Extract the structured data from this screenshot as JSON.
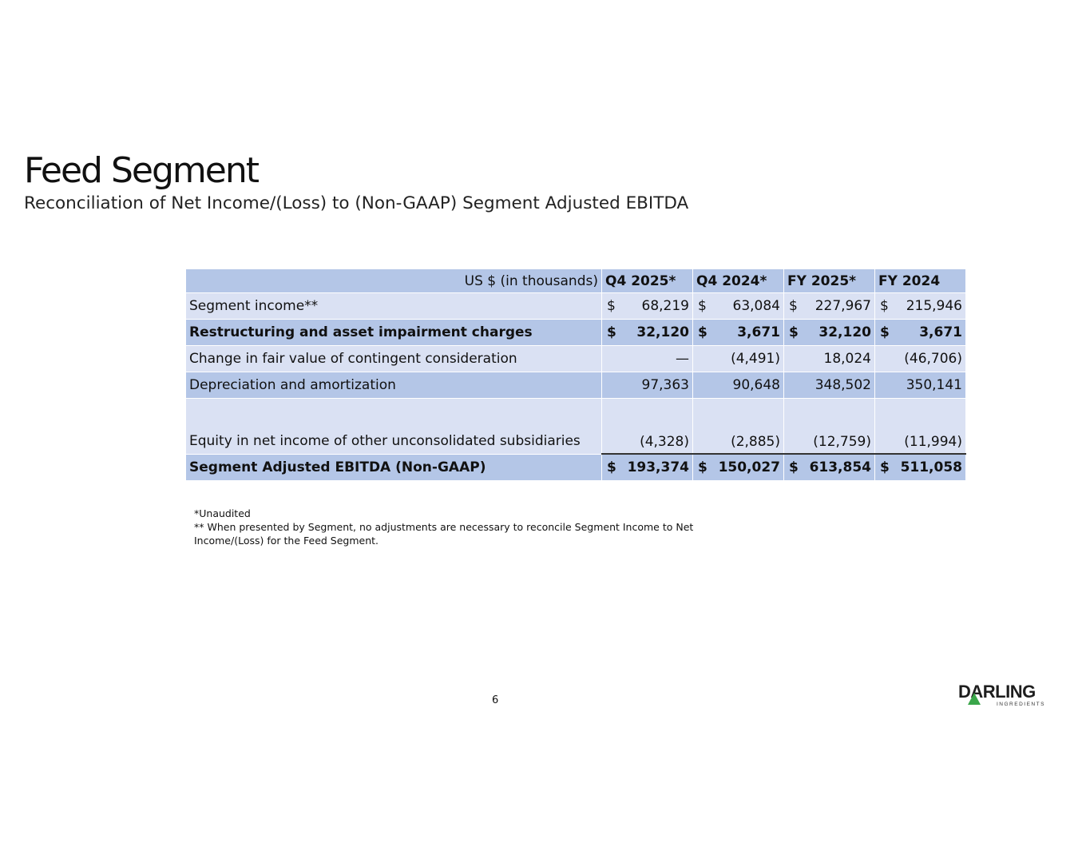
{
  "title": "Feed Segment",
  "subtitle": "Reconciliation of Net Income/(Loss) to (Non-GAAP) Segment Adjusted EBITDA",
  "table": {
    "header": [
      "US $ (in thousands)",
      "Q4 2025*",
      "Q4 2024*",
      "FY 2025*",
      "FY 2024"
    ],
    "rows": [
      {
        "label": "Segment income**",
        "cur": "$",
        "values": [
          "68,219",
          "63,084",
          "227,967",
          "215,946"
        ]
      },
      {
        "label": "Restructuring and asset impairment charges",
        "cur": "$",
        "values": [
          "32,120",
          "3,671",
          "32,120",
          "3,671"
        ]
      },
      {
        "label": "Change in fair value of contingent consideration",
        "cur": "",
        "values": [
          "—",
          "(4,491)",
          "18,024",
          "(46,706)"
        ]
      },
      {
        "label": "Depreciation and amortization",
        "cur": "",
        "values": [
          "97,363",
          "90,648",
          "348,502",
          "350,141"
        ]
      },
      {
        "label": "Equity in net income of other unconsolidated subsidiaries",
        "cur": "",
        "values": [
          "(4,328)",
          "(2,885)",
          "(12,759)",
          "(11,994)"
        ]
      },
      {
        "label": "Segment Adjusted EBITDA (Non-GAAP)",
        "cur": "$",
        "values": [
          "193,374",
          "150,027",
          "613,854",
          "511,058"
        ]
      }
    ]
  },
  "notes": [
    "*Unaudited",
    "** When presented by Segment, no adjustments are necessary to reconcile Segment Income to Net Income/(Loss) for the Feed Segment."
  ],
  "page_number": "6",
  "logo": {
    "name": "DARLING",
    "tagline": "INGREDIENTS",
    "color": "#1e1e1e",
    "accent": "#3aa64a"
  }
}
